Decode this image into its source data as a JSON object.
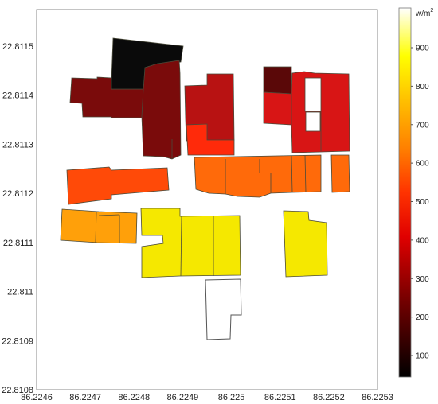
{
  "map": {
    "x_ticks": [
      "86.2246",
      "86.2247",
      "86.2248",
      "86.2249",
      "86.225",
      "86.2251",
      "86.2252",
      "86.2253"
    ],
    "y_ticks": [
      "22.8115",
      "22.8114",
      "22.8113",
      "22.8112",
      "22.8111",
      "22.811",
      "22.8109",
      "22.8108"
    ],
    "colorbar": {
      "unit": "w/m",
      "unit_sup": "2",
      "ticks": [
        "900",
        "800",
        "700",
        "600",
        "500",
        "400",
        "300",
        "200",
        "100"
      ]
    },
    "colors": {
      "black": "#0a0a0a",
      "dark_red": "#7a0b0b",
      "red": "#b81212",
      "bright_red": "#ff2a0a",
      "red_orange": "#ff4a08",
      "orange": "#ff6a0a",
      "light_orange": "#ffa00a",
      "yellow": "#f5e800"
    }
  }
}
